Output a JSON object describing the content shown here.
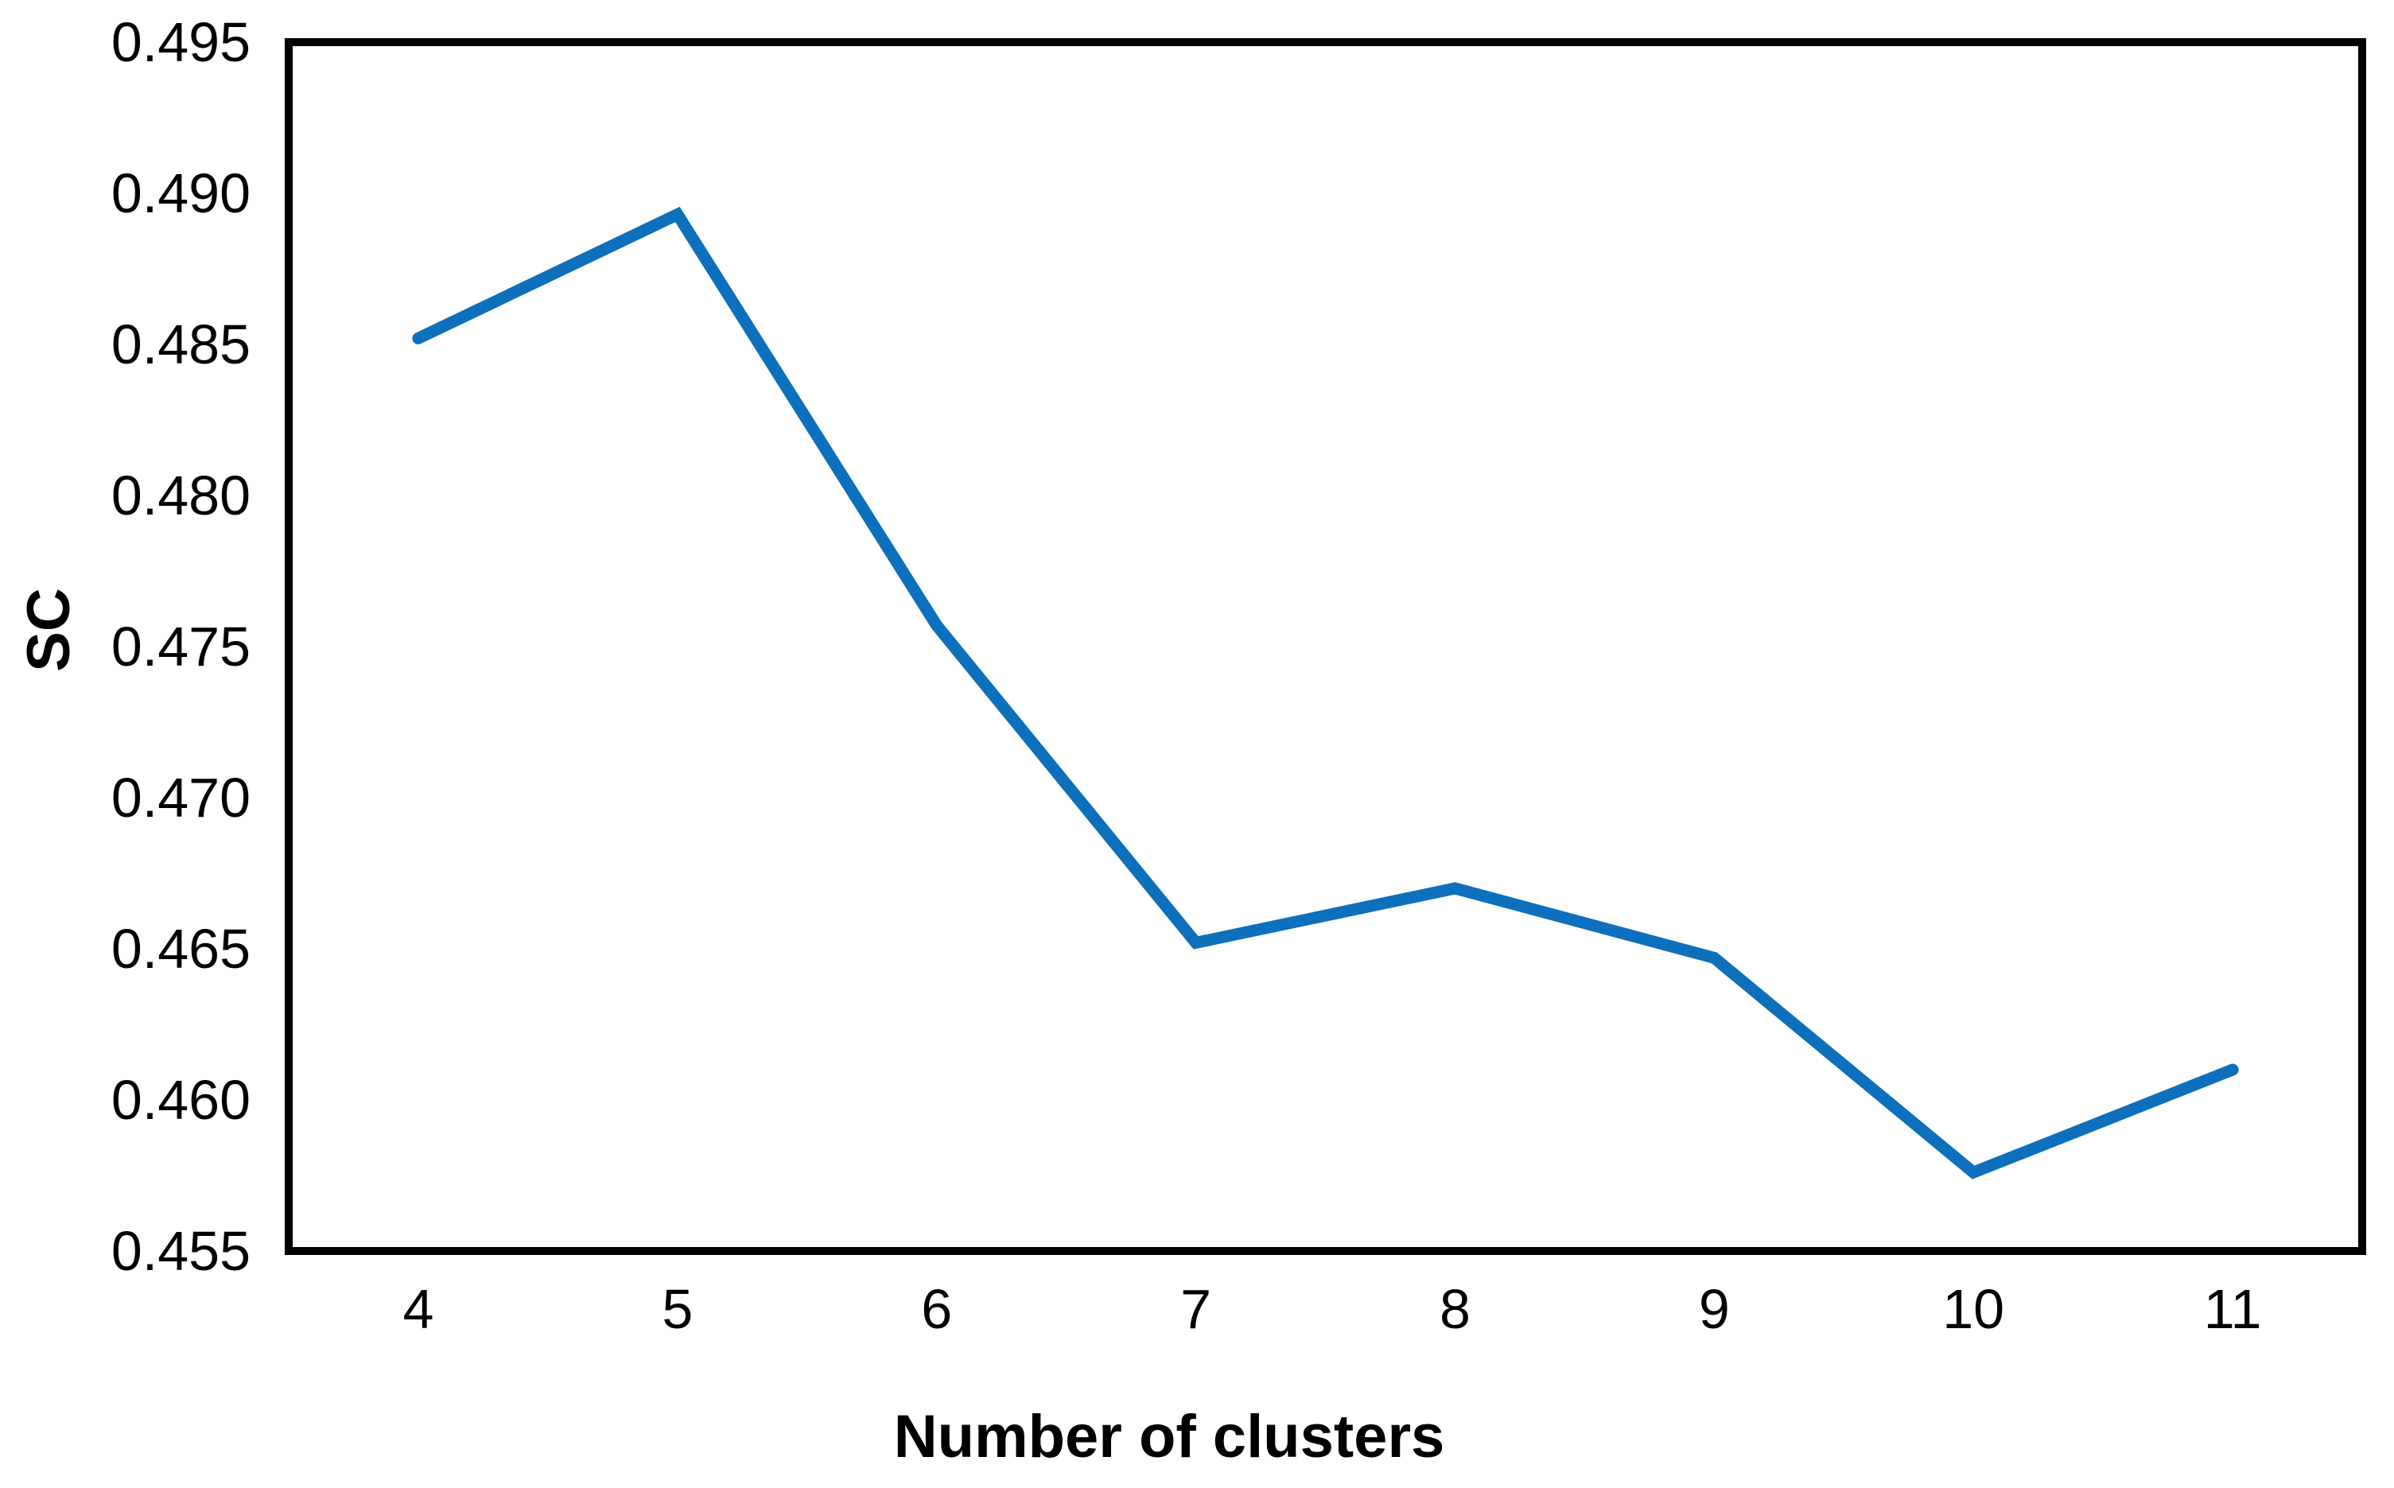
{
  "figure": {
    "background": "#FFFFFF",
    "axis_color": "#000000",
    "line_color": "#0D70BC"
  },
  "chart_data": {
    "type": "line",
    "title": "",
    "xlabel": "Number of clusters",
    "ylabel": "SC",
    "x": [
      4,
      5,
      6,
      7,
      8,
      9,
      10,
      11
    ],
    "series": [
      {
        "name": "SC",
        "values": [
          0.4852,
          0.4893,
          0.4757,
          0.4652,
          0.467,
          0.4647,
          0.4576,
          0.461
        ]
      }
    ],
    "xlim_categories": [
      "4",
      "5",
      "6",
      "7",
      "8",
      "9",
      "10",
      "11"
    ],
    "ylim": [
      0.455,
      0.495
    ],
    "y_tick_step": 0.005,
    "y_tick_labels": [
      "0.495",
      "0.490",
      "0.485",
      "0.480",
      "0.475",
      "0.470",
      "0.465",
      "0.460",
      "0.455"
    ],
    "x_tick_labels": [
      "4",
      "5",
      "6",
      "7",
      "8",
      "9",
      "10",
      "11"
    ],
    "grid": false,
    "legend": "none",
    "markers": "none"
  }
}
